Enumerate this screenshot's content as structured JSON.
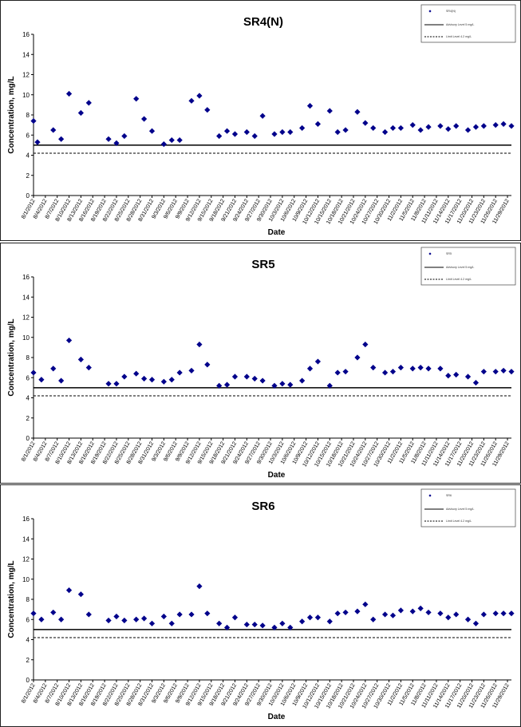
{
  "colors": {
    "marker": "#00008B",
    "threshold": "#000000",
    "frame_border": "#222222"
  },
  "chart_data": [
    {
      "type": "scatter",
      "title": "SR4(N)",
      "xlabel": "Date",
      "ylabel": "Concentration, mg/L",
      "ylim": [
        0,
        16
      ],
      "yticks": [
        0,
        2,
        4,
        6,
        8,
        10,
        12,
        14,
        16
      ],
      "x_tick_labels": [
        "8/1/2012",
        "8/4/2012",
        "8/7/2012",
        "8/10/2012",
        "8/13/2012",
        "8/16/2012",
        "8/19/2012",
        "8/22/2012",
        "8/25/2012",
        "8/28/2012",
        "8/31/2012",
        "9/3/2012",
        "9/6/2012",
        "9/9/2012",
        "9/12/2012",
        "9/15/2012",
        "9/18/2012",
        "9/21/2012",
        "9/24/2012",
        "9/27/2012",
        "9/30/2012",
        "10/3/2012",
        "10/6/2012",
        "10/9/2012",
        "10/12/2012",
        "10/15/2012",
        "10/18/2012",
        "10/21/2012",
        "10/24/2012",
        "10/27/2012",
        "10/30/2012",
        "11/2/2012",
        "11/5/2012",
        "11/8/2012",
        "11/11/2012",
        "11/14/2012",
        "11/17/2012",
        "11/20/2012",
        "11/23/2012",
        "11/26/2012",
        "11/29/2012"
      ],
      "series": [
        {
          "name": "SR4(N)",
          "points": [
            [
              "2012-08-01",
              7.4
            ],
            [
              "2012-08-02",
              5.3
            ],
            [
              "2012-08-06",
              6.5
            ],
            [
              "2012-08-08",
              5.6
            ],
            [
              "2012-08-10",
              10.1
            ],
            [
              "2012-08-13",
              8.2
            ],
            [
              "2012-08-15",
              9.2
            ],
            [
              "2012-08-20",
              5.6
            ],
            [
              "2012-08-22",
              5.2
            ],
            [
              "2012-08-24",
              5.9
            ],
            [
              "2012-08-27",
              9.6
            ],
            [
              "2012-08-29",
              7.6
            ],
            [
              "2012-08-31",
              6.4
            ],
            [
              "2012-09-03",
              5.1
            ],
            [
              "2012-09-05",
              5.5
            ],
            [
              "2012-09-07",
              5.5
            ],
            [
              "2012-09-10",
              9.4
            ],
            [
              "2012-09-12",
              9.9
            ],
            [
              "2012-09-14",
              8.5
            ],
            [
              "2012-09-17",
              5.9
            ],
            [
              "2012-09-19",
              6.4
            ],
            [
              "2012-09-21",
              6.1
            ],
            [
              "2012-09-24",
              6.3
            ],
            [
              "2012-09-26",
              5.9
            ],
            [
              "2012-09-28",
              7.9
            ],
            [
              "2012-10-01",
              6.1
            ],
            [
              "2012-10-03",
              6.3
            ],
            [
              "2012-10-05",
              6.3
            ],
            [
              "2012-10-08",
              6.7
            ],
            [
              "2012-10-10",
              8.9
            ],
            [
              "2012-10-12",
              7.1
            ],
            [
              "2012-10-15",
              8.4
            ],
            [
              "2012-10-17",
              6.3
            ],
            [
              "2012-10-19",
              6.5
            ],
            [
              "2012-10-22",
              8.3
            ],
            [
              "2012-10-24",
              7.2
            ],
            [
              "2012-10-26",
              6.7
            ],
            [
              "2012-10-29",
              6.3
            ],
            [
              "2012-10-31",
              6.7
            ],
            [
              "2012-11-02",
              6.7
            ],
            [
              "2012-11-05",
              7.0
            ],
            [
              "2012-11-07",
              6.5
            ],
            [
              "2012-11-09",
              6.8
            ],
            [
              "2012-11-12",
              6.9
            ],
            [
              "2012-11-14",
              6.6
            ],
            [
              "2012-11-16",
              6.9
            ],
            [
              "2012-11-19",
              6.5
            ],
            [
              "2012-11-21",
              6.8
            ],
            [
              "2012-11-23",
              6.9
            ],
            [
              "2012-11-26",
              7.0
            ],
            [
              "2012-11-28",
              7.1
            ],
            [
              "2012-11-30",
              6.9
            ]
          ]
        }
      ],
      "lines": [
        {
          "value": 5.0,
          "style": "solid"
        },
        {
          "value": 4.2,
          "style": "dashed"
        }
      ],
      "legend": {
        "position": "top-right",
        "entries": [
          "SR4(N)",
          "Advisory Level 5 mg/L",
          "Limit Level 4.2 mg/L"
        ]
      }
    },
    {
      "type": "scatter",
      "title": "SR5",
      "xlabel": "Date",
      "ylabel": "Concentration, mg/L",
      "ylim": [
        0,
        16
      ],
      "yticks": [
        0,
        2,
        4,
        6,
        8,
        10,
        12,
        14,
        16
      ],
      "x_tick_labels": [
        "8/1/2012",
        "8/4/2012",
        "8/7/2012",
        "8/10/2012",
        "8/13/2012",
        "8/16/2012",
        "8/19/2012",
        "8/22/2012",
        "8/25/2012",
        "8/28/2012",
        "8/31/2012",
        "9/3/2012",
        "9/6/2012",
        "9/9/2012",
        "9/12/2012",
        "9/15/2012",
        "9/18/2012",
        "9/21/2012",
        "9/24/2012",
        "9/27/2012",
        "9/30/2012",
        "10/3/2012",
        "10/6/2012",
        "10/9/2012",
        "10/12/2012",
        "10/15/2012",
        "10/18/2012",
        "10/21/2012",
        "10/24/2012",
        "10/27/2012",
        "10/30/2012",
        "11/2/2012",
        "11/5/2012",
        "11/8/2012",
        "11/11/2012",
        "11/14/2012",
        "11/17/2012",
        "11/20/2012",
        "11/23/2012",
        "11/26/2012",
        "11/29/2012"
      ],
      "series": [
        {
          "name": "SR5",
          "points": [
            [
              "2012-08-01",
              6.5
            ],
            [
              "2012-08-03",
              5.8
            ],
            [
              "2012-08-06",
              6.9
            ],
            [
              "2012-08-08",
              5.7
            ],
            [
              "2012-08-10",
              9.7
            ],
            [
              "2012-08-13",
              7.8
            ],
            [
              "2012-08-15",
              7.0
            ],
            [
              "2012-08-20",
              5.4
            ],
            [
              "2012-08-22",
              5.4
            ],
            [
              "2012-08-24",
              6.1
            ],
            [
              "2012-08-27",
              6.4
            ],
            [
              "2012-08-29",
              5.9
            ],
            [
              "2012-08-31",
              5.8
            ],
            [
              "2012-09-03",
              5.6
            ],
            [
              "2012-09-05",
              5.8
            ],
            [
              "2012-09-07",
              6.5
            ],
            [
              "2012-09-10",
              6.7
            ],
            [
              "2012-09-12",
              9.3
            ],
            [
              "2012-09-14",
              7.3
            ],
            [
              "2012-09-17",
              5.2
            ],
            [
              "2012-09-19",
              5.3
            ],
            [
              "2012-09-21",
              6.1
            ],
            [
              "2012-09-24",
              6.1
            ],
            [
              "2012-09-26",
              5.9
            ],
            [
              "2012-09-28",
              5.7
            ],
            [
              "2012-10-01",
              5.2
            ],
            [
              "2012-10-03",
              5.4
            ],
            [
              "2012-10-05",
              5.3
            ],
            [
              "2012-10-08",
              5.7
            ],
            [
              "2012-10-10",
              6.9
            ],
            [
              "2012-10-12",
              7.6
            ],
            [
              "2012-10-15",
              5.2
            ],
            [
              "2012-10-17",
              6.5
            ],
            [
              "2012-10-19",
              6.6
            ],
            [
              "2012-10-22",
              8.0
            ],
            [
              "2012-10-24",
              9.3
            ],
            [
              "2012-10-26",
              7.0
            ],
            [
              "2012-10-29",
              6.5
            ],
            [
              "2012-10-31",
              6.6
            ],
            [
              "2012-11-02",
              7.0
            ],
            [
              "2012-11-05",
              6.9
            ],
            [
              "2012-11-07",
              7.0
            ],
            [
              "2012-11-09",
              6.9
            ],
            [
              "2012-11-12",
              6.9
            ],
            [
              "2012-11-14",
              6.2
            ],
            [
              "2012-11-16",
              6.3
            ],
            [
              "2012-11-19",
              6.1
            ],
            [
              "2012-11-21",
              5.5
            ],
            [
              "2012-11-23",
              6.6
            ],
            [
              "2012-11-26",
              6.6
            ],
            [
              "2012-11-28",
              6.7
            ],
            [
              "2012-11-30",
              6.6
            ]
          ]
        }
      ],
      "lines": [
        {
          "value": 5.0,
          "style": "solid"
        },
        {
          "value": 4.2,
          "style": "dashed"
        }
      ],
      "legend": {
        "position": "top-right",
        "entries": [
          "SR5",
          "Advisory Level 5 mg/L",
          "Limit Level 4.2 mg/L"
        ]
      }
    },
    {
      "type": "scatter",
      "title": "SR6",
      "xlabel": "Date",
      "ylabel": "Concentration, mg/L",
      "ylim": [
        0,
        16
      ],
      "yticks": [
        0,
        2,
        4,
        6,
        8,
        10,
        12,
        14,
        16
      ],
      "x_tick_labels": [
        "8/1/2012",
        "8/4/2012",
        "8/7/2012",
        "8/10/2012",
        "8/13/2012",
        "8/16/2012",
        "8/19/2012",
        "8/22/2012",
        "8/25/2012",
        "8/28/2012",
        "8/31/2012",
        "9/3/2012",
        "9/6/2012",
        "9/9/2012",
        "9/12/2012",
        "9/15/2012",
        "9/18/2012",
        "9/21/2012",
        "9/24/2012",
        "9/27/2012",
        "9/30/2012",
        "10/3/2012",
        "10/6/2012",
        "10/9/2012",
        "10/12/2012",
        "10/15/2012",
        "10/18/2012",
        "10/21/2012",
        "10/24/2012",
        "10/27/2012",
        "10/30/2012",
        "11/2/2012",
        "11/5/2012",
        "11/8/2012",
        "11/11/2012",
        "11/14/2012",
        "11/17/2012",
        "11/20/2012",
        "11/23/2012",
        "11/26/2012",
        "11/29/2012"
      ],
      "series": [
        {
          "name": "SR6",
          "points": [
            [
              "2012-08-01",
              6.6
            ],
            [
              "2012-08-03",
              6.0
            ],
            [
              "2012-08-06",
              6.7
            ],
            [
              "2012-08-08",
              6.0
            ],
            [
              "2012-08-10",
              8.9
            ],
            [
              "2012-08-13",
              8.5
            ],
            [
              "2012-08-15",
              6.5
            ],
            [
              "2012-08-20",
              5.9
            ],
            [
              "2012-08-22",
              6.3
            ],
            [
              "2012-08-24",
              5.9
            ],
            [
              "2012-08-27",
              6.0
            ],
            [
              "2012-08-29",
              6.1
            ],
            [
              "2012-08-31",
              5.6
            ],
            [
              "2012-09-03",
              6.3
            ],
            [
              "2012-09-05",
              5.6
            ],
            [
              "2012-09-07",
              6.5
            ],
            [
              "2012-09-10",
              6.5
            ],
            [
              "2012-09-12",
              9.3
            ],
            [
              "2012-09-14",
              6.6
            ],
            [
              "2012-09-17",
              5.6
            ],
            [
              "2012-09-19",
              5.2
            ],
            [
              "2012-09-21",
              6.2
            ],
            [
              "2012-09-24",
              5.5
            ],
            [
              "2012-09-26",
              5.5
            ],
            [
              "2012-09-28",
              5.4
            ],
            [
              "2012-10-01",
              5.2
            ],
            [
              "2012-10-03",
              5.6
            ],
            [
              "2012-10-05",
              5.2
            ],
            [
              "2012-10-08",
              5.8
            ],
            [
              "2012-10-10",
              6.2
            ],
            [
              "2012-10-12",
              6.2
            ],
            [
              "2012-10-15",
              5.8
            ],
            [
              "2012-10-17",
              6.6
            ],
            [
              "2012-10-19",
              6.7
            ],
            [
              "2012-10-22",
              6.8
            ],
            [
              "2012-10-24",
              7.5
            ],
            [
              "2012-10-26",
              6.0
            ],
            [
              "2012-10-29",
              6.5
            ],
            [
              "2012-10-31",
              6.4
            ],
            [
              "2012-11-02",
              6.9
            ],
            [
              "2012-11-05",
              6.8
            ],
            [
              "2012-11-07",
              7.1
            ],
            [
              "2012-11-09",
              6.7
            ],
            [
              "2012-11-12",
              6.6
            ],
            [
              "2012-11-14",
              6.2
            ],
            [
              "2012-11-16",
              6.5
            ],
            [
              "2012-11-19",
              6.0
            ],
            [
              "2012-11-21",
              5.6
            ],
            [
              "2012-11-23",
              6.5
            ],
            [
              "2012-11-26",
              6.6
            ],
            [
              "2012-11-28",
              6.6
            ],
            [
              "2012-11-30",
              6.6
            ]
          ]
        }
      ],
      "lines": [
        {
          "value": 5.0,
          "style": "solid"
        },
        {
          "value": 4.2,
          "style": "dashed"
        }
      ],
      "legend": {
        "position": "top-right",
        "entries": [
          "SR6",
          "Advisory Level 5 mg/L",
          "Limit Level 4.2 mg/L"
        ]
      }
    }
  ]
}
